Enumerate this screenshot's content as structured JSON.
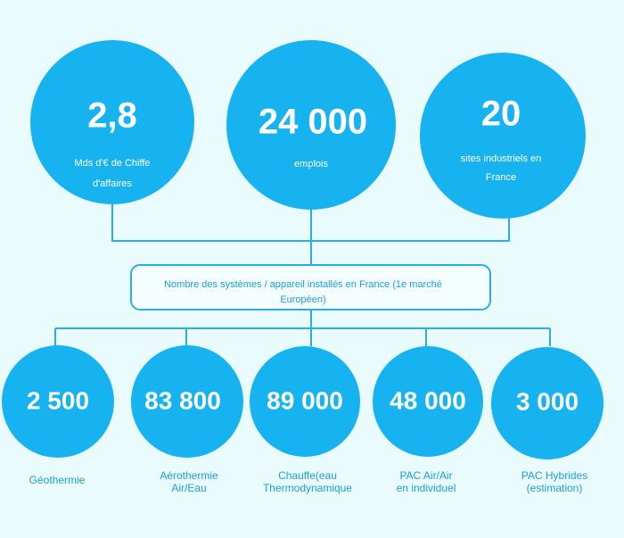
{
  "top": [
    {
      "value": "2,8",
      "lines": [
        "Mds d'€ de Chiffe",
        "d'affaires"
      ]
    },
    {
      "value": "24 000",
      "lines": [
        "emplois"
      ]
    },
    {
      "value": "20",
      "lines": [
        "sites industriels en",
        "France"
      ]
    }
  ],
  "center_box": {
    "lines": [
      "Nombre des systèmes / appareil installés en France (1e marché",
      "Européen)"
    ]
  },
  "bottom": [
    {
      "value": "2 500",
      "lines": [
        "Géothermie"
      ]
    },
    {
      "value": "83 800",
      "lines": [
        "Aérothermie",
        "Air/Eau"
      ]
    },
    {
      "value": "89 000",
      "lines": [
        "Chauffe(eau",
        "Thermodynamique"
      ]
    },
    {
      "value": "48 000",
      "lines": [
        "PAC Air/Air",
        "en individuel"
      ]
    },
    {
      "value": "3 000",
      "lines": [
        "PAC Hybrides",
        "(estimation)"
      ]
    }
  ]
}
